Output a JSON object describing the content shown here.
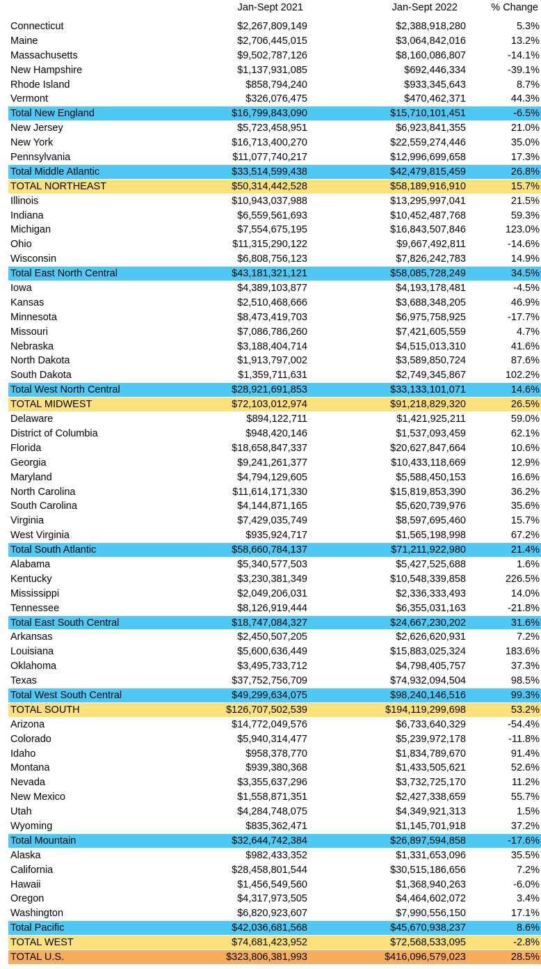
{
  "headers": [
    "Jan-Sept 2021",
    "Jan-Sept 2022",
    "% Change"
  ],
  "colors": {
    "subtotal": "#4ec9f5",
    "region": "#fde17a",
    "national": "#f8ac5e"
  },
  "rows": [
    {
      "name": "Connecticut",
      "y2021": "$2,267,809,149",
      "y2022": "$2,388,918,280",
      "change": "5.3%",
      "type": "state"
    },
    {
      "name": "Maine",
      "y2021": "$2,706,445,015",
      "y2022": "$3,064,842,016",
      "change": "13.2%",
      "type": "state"
    },
    {
      "name": "Massachusetts",
      "y2021": "$9,502,787,126",
      "y2022": "$8,160,086,807",
      "change": "-14.1%",
      "type": "state"
    },
    {
      "name": "New Hampshire",
      "y2021": "$1,137,931,085",
      "y2022": "$692,446,334",
      "change": "-39.1%",
      "type": "state"
    },
    {
      "name": "Rhode Island",
      "y2021": "$858,794,240",
      "y2022": "$933,345,643",
      "change": "8.7%",
      "type": "state"
    },
    {
      "name": "Vermont",
      "y2021": "$326,076,475",
      "y2022": "$470,462,371",
      "change": "44.3%",
      "type": "state"
    },
    {
      "name": "Total New England",
      "y2021": "$16,799,843,090",
      "y2022": "$15,710,101,451",
      "change": "-6.5%",
      "type": "subtotal"
    },
    {
      "name": "New Jersey",
      "y2021": "$5,723,458,951",
      "y2022": "$6,923,841,355",
      "change": "21.0%",
      "type": "state"
    },
    {
      "name": "New York",
      "y2021": "$16,713,400,270",
      "y2022": "$22,559,274,446",
      "change": "35.0%",
      "type": "state"
    },
    {
      "name": "Pennsylvania",
      "y2021": "$11,077,740,217",
      "y2022": "$12,996,699,658",
      "change": "17.3%",
      "type": "state"
    },
    {
      "name": "Total Middle Atlantic",
      "y2021": "$33,514,599,438",
      "y2022": "$42,479,815,459",
      "change": "26.8%",
      "type": "subtotal"
    },
    {
      "name": "TOTAL NORTHEAST",
      "y2021": "$50,314,442,528",
      "y2022": "$58,189,916,910",
      "change": "15.7%",
      "type": "region"
    },
    {
      "name": "Illinois",
      "y2021": "$10,943,037,988",
      "y2022": "$13,295,997,041",
      "change": "21.5%",
      "type": "state"
    },
    {
      "name": "Indiana",
      "y2021": "$6,559,561,693",
      "y2022": "$10,452,487,768",
      "change": "59.3%",
      "type": "state"
    },
    {
      "name": "Michigan",
      "y2021": "$7,554,675,195",
      "y2022": "$16,843,507,846",
      "change": "123.0%",
      "type": "state"
    },
    {
      "name": "Ohio",
      "y2021": "$11,315,290,122",
      "y2022": "$9,667,492,811",
      "change": "-14.6%",
      "type": "state"
    },
    {
      "name": "Wisconsin",
      "y2021": "$6,808,756,123",
      "y2022": "$7,826,242,783",
      "change": "14.9%",
      "type": "state"
    },
    {
      "name": "Total East North Central",
      "y2021": "$43,181,321,121",
      "y2022": "$58,085,728,249",
      "change": "34.5%",
      "type": "subtotal"
    },
    {
      "name": "Iowa",
      "y2021": "$4,389,103,877",
      "y2022": "$4,193,178,481",
      "change": "-4.5%",
      "type": "state"
    },
    {
      "name": "Kansas",
      "y2021": "$2,510,468,666",
      "y2022": "$3,688,348,205",
      "change": "46.9%",
      "type": "state"
    },
    {
      "name": "Minnesota",
      "y2021": "$8,473,419,703",
      "y2022": "$6,975,758,925",
      "change": "-17.7%",
      "type": "state"
    },
    {
      "name": "Missouri",
      "y2021": "$7,086,786,260",
      "y2022": "$7,421,605,559",
      "change": "4.7%",
      "type": "state"
    },
    {
      "name": "Nebraska",
      "y2021": "$3,188,404,714",
      "y2022": "$4,515,013,310",
      "change": "41.6%",
      "type": "state"
    },
    {
      "name": "North Dakota",
      "y2021": "$1,913,797,002",
      "y2022": "$3,589,850,724",
      "change": "87.6%",
      "type": "state"
    },
    {
      "name": "South Dakota",
      "y2021": "$1,359,711,631",
      "y2022": "$2,749,345,867",
      "change": "102.2%",
      "type": "state"
    },
    {
      "name": "Total West North Central",
      "y2021": "$28,921,691,853",
      "y2022": "$33,133,101,071",
      "change": "14.6%",
      "type": "subtotal"
    },
    {
      "name": "TOTAL MIDWEST",
      "y2021": "$72,103,012,974",
      "y2022": "$91,218,829,320",
      "change": "26.5%",
      "type": "region"
    },
    {
      "name": "Delaware",
      "y2021": "$894,122,711",
      "y2022": "$1,421,925,211",
      "change": "59.0%",
      "type": "state"
    },
    {
      "name": "District of Columbia",
      "y2021": "$948,420,146",
      "y2022": "$1,537,093,459",
      "change": "62.1%",
      "type": "state"
    },
    {
      "name": "Florida",
      "y2021": "$18,658,847,337",
      "y2022": "$20,627,847,664",
      "change": "10.6%",
      "type": "state"
    },
    {
      "name": "Georgia",
      "y2021": "$9,241,261,377",
      "y2022": "$10,433,118,669",
      "change": "12.9%",
      "type": "state"
    },
    {
      "name": "Maryland",
      "y2021": "$4,794,129,605",
      "y2022": "$5,588,450,153",
      "change": "16.6%",
      "type": "state"
    },
    {
      "name": "North Carolina",
      "y2021": "$11,614,171,330",
      "y2022": "$15,819,853,390",
      "change": "36.2%",
      "type": "state"
    },
    {
      "name": "South Carolina",
      "y2021": "$4,144,871,165",
      "y2022": "$5,620,739,976",
      "change": "35.6%",
      "type": "state"
    },
    {
      "name": "Virginia",
      "y2021": "$7,429,035,749",
      "y2022": "$8,597,695,460",
      "change": "15.7%",
      "type": "state"
    },
    {
      "name": "West Virginia",
      "y2021": "$935,924,717",
      "y2022": "$1,565,198,998",
      "change": "67.2%",
      "type": "state"
    },
    {
      "name": "Total South Atlantic",
      "y2021": "$58,660,784,137",
      "y2022": "$71,211,922,980",
      "change": "21.4%",
      "type": "subtotal"
    },
    {
      "name": "Alabama",
      "y2021": "$5,340,577,503",
      "y2022": "$5,427,525,688",
      "change": "1.6%",
      "type": "state"
    },
    {
      "name": "Kentucky",
      "y2021": "$3,230,381,349",
      "y2022": "$10,548,339,858",
      "change": "226.5%",
      "type": "state"
    },
    {
      "name": "Mississippi",
      "y2021": "$2,049,206,031",
      "y2022": "$2,336,333,493",
      "change": "14.0%",
      "type": "state"
    },
    {
      "name": "Tennessee",
      "y2021": "$8,126,919,444",
      "y2022": "$6,355,031,163",
      "change": "-21.8%",
      "type": "state"
    },
    {
      "name": "Total East South Central",
      "y2021": "$18,747,084,327",
      "y2022": "$24,667,230,202",
      "change": "31.6%",
      "type": "subtotal"
    },
    {
      "name": "Arkansas",
      "y2021": "$2,450,507,205",
      "y2022": "$2,626,620,931",
      "change": "7.2%",
      "type": "state"
    },
    {
      "name": "Louisiana",
      "y2021": "$5,600,636,449",
      "y2022": "$15,883,025,324",
      "change": "183.6%",
      "type": "state"
    },
    {
      "name": "Oklahoma",
      "y2021": "$3,495,733,712",
      "y2022": "$4,798,405,757",
      "change": "37.3%",
      "type": "state"
    },
    {
      "name": "Texas",
      "y2021": "$37,752,756,709",
      "y2022": "$74,932,094,504",
      "change": "98.5%",
      "type": "state"
    },
    {
      "name": "Total West South Central",
      "y2021": "$49,299,634,075",
      "y2022": "$98,240,146,516",
      "change": "99.3%",
      "type": "subtotal"
    },
    {
      "name": "TOTAL SOUTH",
      "y2021": "$126,707,502,539",
      "y2022": "$194,119,299,698",
      "change": "53.2%",
      "type": "region"
    },
    {
      "name": "Arizona",
      "y2021": "$14,772,049,576",
      "y2022": "$6,733,640,329",
      "change": "-54.4%",
      "type": "state"
    },
    {
      "name": "Colorado",
      "y2021": "$5,940,314,477",
      "y2022": "$5,239,972,178",
      "change": "-11.8%",
      "type": "state"
    },
    {
      "name": "Idaho",
      "y2021": "$958,378,770",
      "y2022": "$1,834,789,670",
      "change": "91.4%",
      "type": "state"
    },
    {
      "name": "Montana",
      "y2021": "$939,380,368",
      "y2022": "$1,433,505,621",
      "change": "52.6%",
      "type": "state"
    },
    {
      "name": "Nevada",
      "y2021": "$3,355,637,296",
      "y2022": "$3,732,725,170",
      "change": "11.2%",
      "type": "state"
    },
    {
      "name": "New Mexico",
      "y2021": "$1,558,871,351",
      "y2022": "$2,427,338,659",
      "change": "55.7%",
      "type": "state"
    },
    {
      "name": "Utah",
      "y2021": "$4,284,748,075",
      "y2022": "$4,349,921,313",
      "change": "1.5%",
      "type": "state"
    },
    {
      "name": "Wyoming",
      "y2021": "$835,362,471",
      "y2022": "$1,145,701,918",
      "change": "37.2%",
      "type": "state"
    },
    {
      "name": "Total Mountain",
      "y2021": "$32,644,742,384",
      "y2022": "$26,897,594,858",
      "change": "-17.6%",
      "type": "subtotal"
    },
    {
      "name": "Alaska",
      "y2021": "$982,433,352",
      "y2022": "$1,331,653,096",
      "change": "35.5%",
      "type": "state"
    },
    {
      "name": "California",
      "y2021": "$28,458,801,544",
      "y2022": "$30,515,186,656",
      "change": "7.2%",
      "type": "state"
    },
    {
      "name": "Hawaii",
      "y2021": "$1,456,549,560",
      "y2022": "$1,368,940,263",
      "change": "-6.0%",
      "type": "state"
    },
    {
      "name": "Oregon",
      "y2021": "$4,317,973,505",
      "y2022": "$4,464,602,072",
      "change": "3.4%",
      "type": "state"
    },
    {
      "name": "Washington",
      "y2021": "$6,820,923,607",
      "y2022": "$7,990,556,150",
      "change": "17.1%",
      "type": "state"
    },
    {
      "name": "Total Pacific",
      "y2021": "$42,036,681,568",
      "y2022": "$45,670,938,237",
      "change": "8.6%",
      "type": "subtotal"
    },
    {
      "name": "TOTAL WEST",
      "y2021": "$74,681,423,952",
      "y2022": "$72,568,533,095",
      "change": "-2.8%",
      "type": "region"
    },
    {
      "name": "TOTAL U.S.",
      "y2021": "$323,806,381,993",
      "y2022": "$416,096,579,023",
      "change": "28.5%",
      "type": "national"
    }
  ]
}
